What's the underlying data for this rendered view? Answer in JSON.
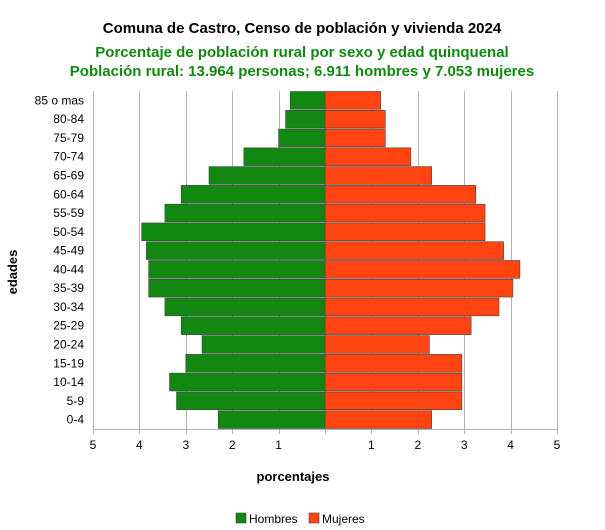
{
  "colors": {
    "hombres": "#118811",
    "mujeres": "#FF4411",
    "subtitle": "#118811",
    "grid": "#b3b3b3"
  },
  "chart_data": {
    "type": "bar",
    "orientation": "horizontal",
    "layout": "population-pyramid",
    "title": "Comuna de Castro, Censo de población y vivienda 2024",
    "subtitle": "Porcentaje de población rural por sexo y edad quinquenal",
    "subtitle2": "Población rural: 13.964 personas; 6.911 hombres y 7.053 mujeres",
    "xlabel": "porcentajes",
    "ylabel": "edades",
    "xlim": [
      -5,
      5
    ],
    "xticks": [
      -5,
      -4,
      -3,
      -2,
      -1,
      1,
      2,
      3,
      4,
      5
    ],
    "xtick_labels": [
      "5",
      "4",
      "3",
      "2",
      "1",
      "1",
      "2",
      "3",
      "4",
      "5"
    ],
    "grid": true,
    "legend_position": "bottom",
    "categories": [
      "0-4",
      "5-9",
      "10-14",
      "15-19",
      "20-24",
      "25-29",
      "30-34",
      "35-39",
      "40-44",
      "45-49",
      "50-54",
      "55-59",
      "60-64",
      "65-69",
      "70-74",
      "75-79",
      "80-84",
      "85 o mas"
    ],
    "series": [
      {
        "name": "Hombres",
        "color": "#118811",
        "values": [
          2.3,
          3.2,
          3.35,
          3.0,
          2.65,
          3.1,
          3.45,
          3.8,
          3.8,
          3.85,
          3.95,
          3.45,
          3.1,
          2.5,
          1.75,
          1.0,
          0.85,
          0.75
        ]
      },
      {
        "name": "Mujeres",
        "color": "#FF4411",
        "values": [
          2.3,
          2.95,
          2.95,
          2.95,
          2.25,
          3.15,
          3.75,
          4.05,
          4.2,
          3.85,
          3.45,
          3.45,
          3.25,
          2.3,
          1.85,
          1.3,
          1.3,
          1.2
        ]
      }
    ]
  }
}
